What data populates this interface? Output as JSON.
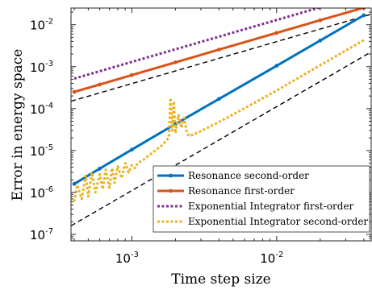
{
  "chart_data": {
    "type": "line",
    "xlabel": "Time step size",
    "ylabel": "Error in energy space",
    "xscale": "log",
    "yscale": "log",
    "xlim": [
      0.00038,
      0.045
    ],
    "ylim": [
      7e-08,
      0.025
    ],
    "x_ticks": [
      {
        "mantissa": "10",
        "exponent": "-3",
        "value": 0.001
      },
      {
        "mantissa": "10",
        "exponent": "-2",
        "value": 0.01
      }
    ],
    "y_ticks": [
      {
        "mantissa": "10",
        "exponent": "-7",
        "value": 1e-07
      },
      {
        "mantissa": "10",
        "exponent": "-6",
        "value": 1e-06
      },
      {
        "mantissa": "10",
        "exponent": "-5",
        "value": 1e-05
      },
      {
        "mantissa": "10",
        "exponent": "-4",
        "value": 0.0001
      },
      {
        "mantissa": "10",
        "exponent": "-3",
        "value": 0.001
      },
      {
        "mantissa": "10",
        "exponent": "-2",
        "value": 0.01
      }
    ],
    "legend_position": "bottom-right",
    "series": [
      {
        "name": "Resonance second-order",
        "color": "#0072bd",
        "style": "solid-dots",
        "x": [
          0.0004,
          0.0006,
          0.001,
          0.002,
          0.004,
          0.01,
          0.02,
          0.04
        ],
        "y": [
          1.6e-06,
          3.7e-06,
          1.05e-05,
          4.3e-05,
          0.00017,
          0.00105,
          0.0042,
          0.0168
        ]
      },
      {
        "name": "Resonance first-order",
        "color": "#d95319",
        "style": "solid-dots",
        "x": [
          0.0004,
          0.0006,
          0.001,
          0.002,
          0.004,
          0.01,
          0.02,
          0.04
        ],
        "y": [
          0.00025,
          0.000375,
          0.00063,
          0.00127,
          0.00255,
          0.0064,
          0.0128,
          0.0256
        ]
      },
      {
        "name": "Exponential Integrator first-order",
        "color": "#7e2f8e",
        "style": "dotted",
        "x": [
          0.0004,
          0.0006,
          0.001,
          0.002,
          0.004,
          0.01,
          0.02,
          0.03
        ],
        "y": [
          0.00052,
          0.00078,
          0.0013,
          0.0026,
          0.0052,
          0.013,
          0.026,
          0.039
        ]
      },
      {
        "name": "Exponential Integrator second-order",
        "color": "#edb120",
        "style": "dotted-noisy",
        "x": [
          0.0004,
          0.00042,
          0.00045,
          0.00048,
          0.0005,
          0.00053,
          0.00056,
          0.0006,
          0.00063,
          0.00066,
          0.0007,
          0.00073,
          0.00076,
          0.0008,
          0.00085,
          0.0009,
          0.00095,
          0.001,
          0.00105,
          0.0011,
          0.0012,
          0.0013,
          0.0014,
          0.0015,
          0.0016,
          0.0017,
          0.0018,
          0.00185,
          0.0019,
          0.00195,
          0.002,
          0.0021,
          0.0022,
          0.0023,
          0.0024,
          0.0025,
          0.003,
          0.004,
          0.006,
          0.01,
          0.02,
          0.04
        ],
        "y": [
          6e-07,
          1.5e-06,
          7e-07,
          2.5e-06,
          8e-07,
          3e-06,
          1e-06,
          2.7e-06,
          1.2e-06,
          3.5e-06,
          1.3e-06,
          3.8e-06,
          1.7e-06,
          4.2e-06,
          2.2e-06,
          5e-06,
          3e-06,
          4.5e-06,
          3.8e-06,
          5e-06,
          6e-06,
          7.5e-06,
          9e-06,
          1.1e-05,
          1.3e-05,
          1.6e-05,
          2e-05,
          0.00018,
          3e-05,
          0.00015,
          2.6e-05,
          7e-05,
          3.5e-05,
          6e-05,
          2.6e-05,
          2.2e-05,
          2.9e-05,
          4.8e-05,
          0.000102,
          0.00027,
          0.00108,
          0.0043
        ]
      }
    ],
    "reference_lines": [
      {
        "x": [
          0.00038,
          0.045
        ],
        "y": [
          0.00015,
          0.0178
        ]
      },
      {
        "x": [
          0.00038,
          0.045
        ],
        "y": [
          1.6e-07,
          0.00225
        ]
      }
    ]
  }
}
